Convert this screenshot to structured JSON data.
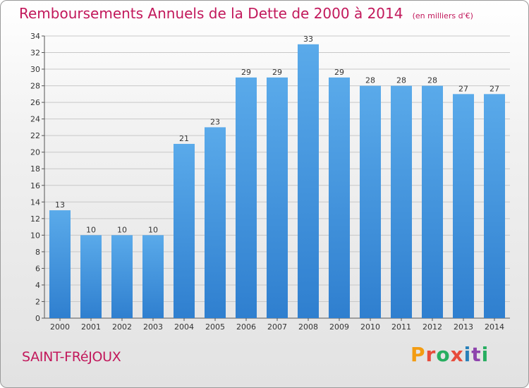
{
  "header": {
    "title": "Remboursements Annuels de la Dette de 2000 à 2014",
    "subtitle": "(en milliers d'€)"
  },
  "footer": {
    "commune": "SAINT-FRéJOUX",
    "logo_text": "Proxiti"
  },
  "colors": {
    "title": "#c2185b",
    "bar_light": "#5aaaea",
    "bar_dark": "#2f7fcf",
    "grid": "#c8c8c8",
    "logo": [
      "#f39c12",
      "#e74c3c",
      "#27ae60",
      "#e74c3c",
      "#2980b9",
      "#8e44ad",
      "#27ae60"
    ]
  },
  "chart_data": {
    "type": "bar",
    "title": "Remboursements Annuels de la Dette de 2000 à 2014",
    "subtitle": "(en milliers d'€)",
    "categories": [
      "2000",
      "2001",
      "2002",
      "2003",
      "2004",
      "2005",
      "2006",
      "2007",
      "2008",
      "2009",
      "2010",
      "2011",
      "2012",
      "2013",
      "2014"
    ],
    "values": [
      13,
      10,
      10,
      10,
      21,
      23,
      29,
      29,
      33,
      29,
      28,
      28,
      28,
      27,
      27
    ],
    "ylim": [
      0,
      34
    ],
    "yticks": [
      0,
      2,
      4,
      6,
      8,
      10,
      12,
      14,
      16,
      18,
      20,
      22,
      24,
      26,
      28,
      30,
      32,
      34
    ],
    "xlabel": "",
    "ylabel": "",
    "grid": true,
    "data_labels": true
  }
}
